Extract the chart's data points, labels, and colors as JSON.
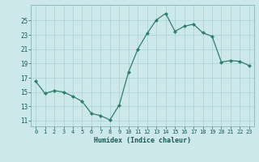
{
  "x": [
    0,
    1,
    2,
    3,
    4,
    5,
    6,
    7,
    8,
    9,
    10,
    11,
    12,
    13,
    14,
    15,
    16,
    17,
    18,
    19,
    20,
    21,
    22,
    23
  ],
  "y": [
    16.5,
    14.8,
    15.2,
    15.0,
    14.4,
    13.7,
    12.0,
    11.7,
    11.1,
    13.2,
    17.8,
    21.0,
    23.2,
    25.1,
    26.0,
    23.5,
    24.2,
    24.5,
    23.3,
    22.8,
    19.2,
    19.4,
    19.3,
    18.7
  ],
  "xlabel": "Humidex (Indice chaleur)",
  "line_color": "#2e7d6e",
  "marker_color": "#2e7d6e",
  "bg_color": "#cce8ea",
  "grid_color": "#b0d4d8",
  "text_color": "#1a5a5a",
  "yticks": [
    11,
    13,
    15,
    17,
    19,
    21,
    23,
    25
  ],
  "xticks": [
    0,
    1,
    2,
    3,
    4,
    5,
    6,
    7,
    8,
    9,
    10,
    11,
    12,
    13,
    14,
    15,
    16,
    17,
    18,
    19,
    20,
    21,
    22,
    23
  ],
  "ylim": [
    10.2,
    27.2
  ],
  "xlim": [
    -0.5,
    23.5
  ]
}
